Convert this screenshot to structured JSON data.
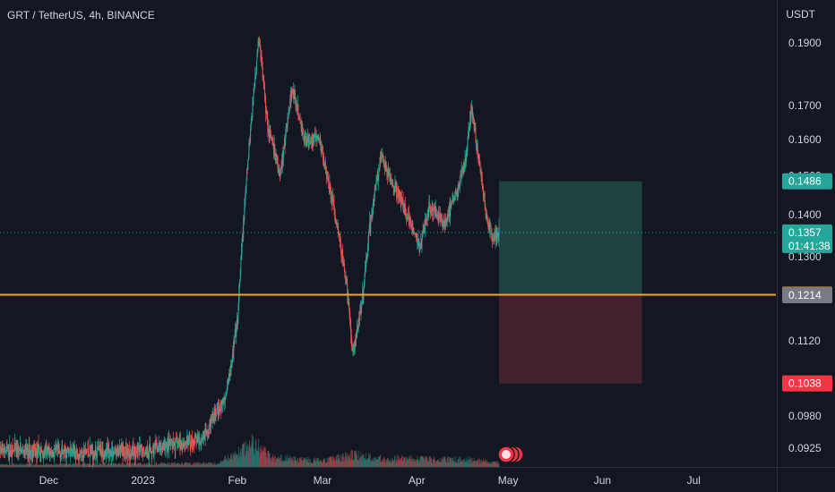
{
  "header": {
    "symbol_line": "GRT / TetherUS, 4h, BINANCE",
    "currency": "USDT"
  },
  "colors": {
    "background": "#131722",
    "up": "#26a69a",
    "down": "#ef5350",
    "axis_text": "#d1d4dc",
    "support_line": "#f5a623",
    "target_zone": "#1e4b45",
    "stop_zone": "#4a2530",
    "price_badge": "#26a69a",
    "stop_badge": "#f23645",
    "entry_badge": "#787b86"
  },
  "chart_data": {
    "type": "candlestick",
    "title": "GRT / TetherUS, 4h, BINANCE",
    "y_scale": "log",
    "ylim": [
      0.0895,
      0.205
    ],
    "xlim": [
      "2022-11-15",
      "2023-07-28"
    ],
    "grid": false,
    "y_ticks": [
      "0.1900",
      "0.1700",
      "0.1600",
      "0.1500",
      "0.1400",
      "0.1300",
      "0.1120",
      "0.0980",
      "0.0925"
    ],
    "x_ticks": [
      {
        "label": "Dec",
        "date": "2022-12-01"
      },
      {
        "label": "2023",
        "date": "2023-01-01"
      },
      {
        "label": "Feb",
        "date": "2023-02-01"
      },
      {
        "label": "Mar",
        "date": "2023-03-01"
      },
      {
        "label": "Apr",
        "date": "2023-04-01"
      },
      {
        "label": "May",
        "date": "2023-05-01"
      },
      {
        "label": "Jun",
        "date": "2023-06-01"
      },
      {
        "label": "Jul",
        "date": "2023-07-01"
      }
    ],
    "price_path": [
      {
        "date": "2022-11-15",
        "price": 0.0922
      },
      {
        "date": "2022-12-01",
        "price": 0.0918
      },
      {
        "date": "2023-01-01",
        "price": 0.092
      },
      {
        "date": "2023-01-20",
        "price": 0.094
      },
      {
        "date": "2023-01-28",
        "price": 0.101
      },
      {
        "date": "2023-02-01",
        "price": 0.115
      },
      {
        "date": "2023-02-03",
        "price": 0.138
      },
      {
        "date": "2023-02-06",
        "price": 0.17
      },
      {
        "date": "2023-02-08",
        "price": 0.192
      },
      {
        "date": "2023-02-11",
        "price": 0.164
      },
      {
        "date": "2023-02-15",
        "price": 0.15
      },
      {
        "date": "2023-02-19",
        "price": 0.175
      },
      {
        "date": "2023-02-23",
        "price": 0.16
      },
      {
        "date": "2023-02-28",
        "price": 0.16
      },
      {
        "date": "2023-03-04",
        "price": 0.145
      },
      {
        "date": "2023-03-09",
        "price": 0.123
      },
      {
        "date": "2023-03-11",
        "price": 0.109
      },
      {
        "date": "2023-03-14",
        "price": 0.12
      },
      {
        "date": "2023-03-17",
        "price": 0.14
      },
      {
        "date": "2023-03-20",
        "price": 0.155
      },
      {
        "date": "2023-03-24",
        "price": 0.148
      },
      {
        "date": "2023-03-29",
        "price": 0.14
      },
      {
        "date": "2023-04-02",
        "price": 0.132
      },
      {
        "date": "2023-04-05",
        "price": 0.142
      },
      {
        "date": "2023-04-10",
        "price": 0.138
      },
      {
        "date": "2023-04-14",
        "price": 0.145
      },
      {
        "date": "2023-04-17",
        "price": 0.154
      },
      {
        "date": "2023-04-19",
        "price": 0.17
      },
      {
        "date": "2023-04-21",
        "price": 0.156
      },
      {
        "date": "2023-04-24",
        "price": 0.139
      },
      {
        "date": "2023-04-26",
        "price": 0.134
      },
      {
        "date": "2023-04-28",
        "price": 0.1357
      }
    ],
    "volume_profile": [
      {
        "date": "2022-11-15",
        "value": 0.1
      },
      {
        "date": "2023-01-25",
        "value": 0.15
      },
      {
        "date": "2023-02-01",
        "value": 0.55
      },
      {
        "date": "2023-02-06",
        "value": 1.0
      },
      {
        "date": "2023-02-12",
        "value": 0.4
      },
      {
        "date": "2023-03-01",
        "value": 0.25
      },
      {
        "date": "2023-03-11",
        "value": 0.5
      },
      {
        "date": "2023-03-20",
        "value": 0.35
      },
      {
        "date": "2023-04-19",
        "value": 0.3
      },
      {
        "date": "2023-04-28",
        "value": 0.2
      }
    ],
    "position": {
      "start_date": "2023-04-28",
      "end_date": "2023-06-14",
      "target": 0.1486,
      "entry": 0.1214,
      "stop": 0.1038
    },
    "support_level": 0.1215,
    "last_price": 0.1357,
    "countdown": "01:41:38",
    "price_labels": {
      "target": "0.1486",
      "last": "0.1357",
      "support": "0.1215",
      "entry": "0.1214",
      "stop": "0.1038"
    }
  }
}
